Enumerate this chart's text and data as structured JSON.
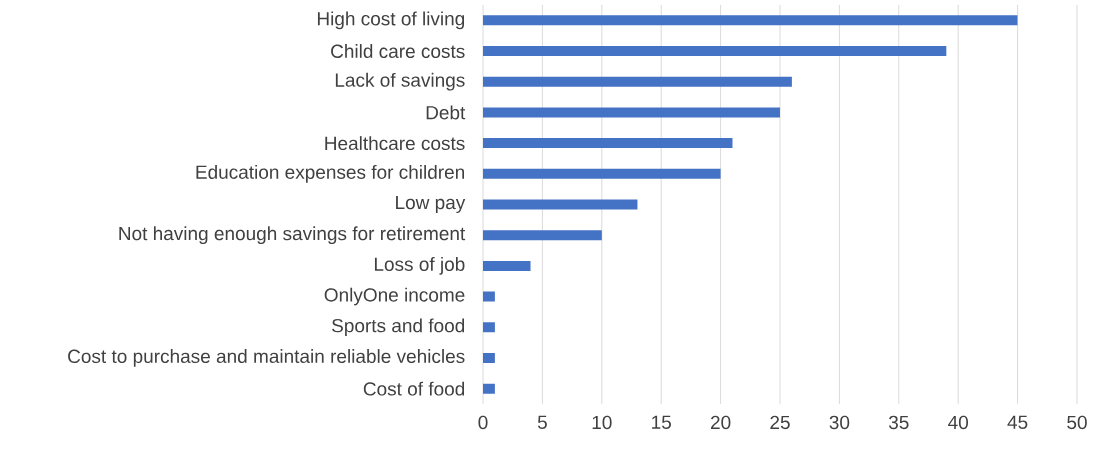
{
  "chart_data": {
    "type": "bar",
    "orientation": "horizontal",
    "categories": [
      "High cost of living",
      "Child care costs",
      "Lack of savings",
      "Debt",
      "Healthcare costs",
      "Education expenses for children",
      "Low pay",
      "Not having enough savings for retirement",
      "Loss of job",
      "OnlyOne income",
      "Sports and food",
      "Cost to purchase and maintain reliable vehicles",
      "Cost of food"
    ],
    "values": [
      45,
      39,
      26,
      25,
      21,
      20,
      13,
      10,
      4,
      1,
      1,
      1,
      1
    ],
    "color": "#4472c4",
    "xlim": [
      0,
      50
    ],
    "xticks": [
      0,
      5,
      10,
      15,
      20,
      25,
      30,
      35,
      40,
      45,
      50
    ],
    "grid": "x"
  }
}
